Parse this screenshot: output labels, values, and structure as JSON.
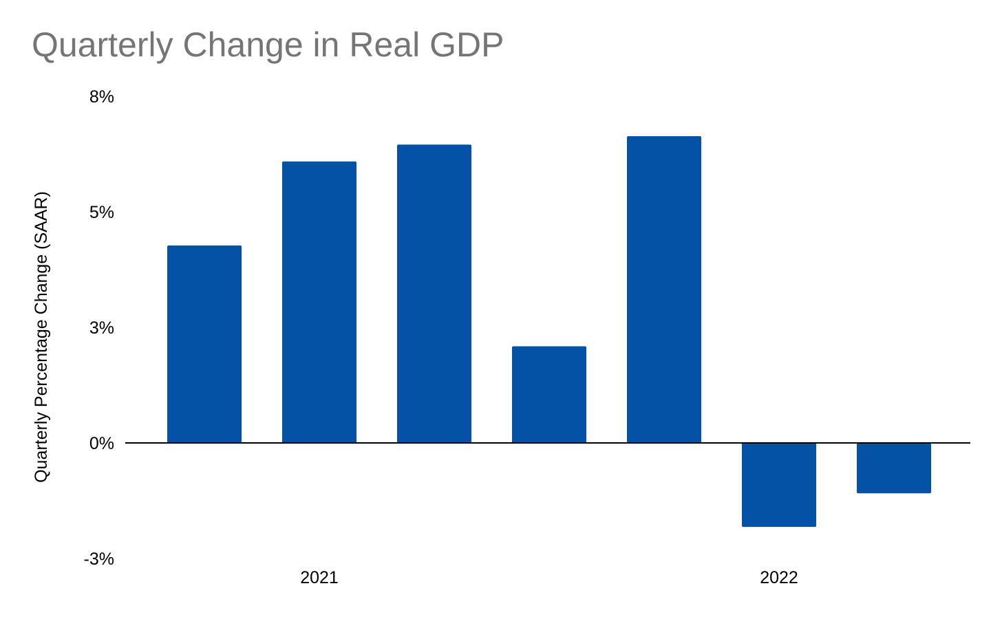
{
  "chart_data": {
    "type": "bar",
    "title": "Quarterly Change in Real GDP",
    "ylabel": "Quarterly Percentage Change (SAAR)",
    "xlabel": "",
    "ylim": [
      -3,
      8
    ],
    "y_ticks": [
      {
        "value": 8,
        "label": "8%"
      },
      {
        "value": 5.25,
        "label": "5%"
      },
      {
        "value": 2.5,
        "label": "3%"
      },
      {
        "value": -0.25,
        "label": "0%"
      },
      {
        "value": -3,
        "label": "-3%"
      }
    ],
    "x_group_labels": [
      {
        "label": "2021",
        "at_bar": 1
      },
      {
        "label": "2022",
        "at_bar": 5
      }
    ],
    "values": [
      4.7,
      6.7,
      7.1,
      2.3,
      7.3,
      -2.0,
      -1.2
    ],
    "grid": false,
    "legend": "none",
    "bar_color": "#0452A5",
    "zero_line_color": "#000000"
  }
}
